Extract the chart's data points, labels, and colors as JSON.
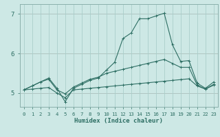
{
  "xlabel": "Humidex (Indice chaleur)",
  "background_color": "#cde8e5",
  "line_color": "#2d6e63",
  "grid_color_major": "#aaceca",
  "grid_color_minor": "#c2deda",
  "xlim": [
    -0.5,
    23.5
  ],
  "ylim": [
    4.65,
    7.25
  ],
  "yticks": [
    5,
    6,
    7
  ],
  "xticks": [
    0,
    1,
    2,
    3,
    4,
    5,
    6,
    7,
    8,
    9,
    10,
    11,
    12,
    13,
    14,
    15,
    16,
    17,
    18,
    19,
    20,
    21,
    22,
    23
  ],
  "line_bottom_y": [
    5.08,
    5.1,
    5.12,
    5.14,
    5.0,
    4.88,
    5.08,
    5.1,
    5.12,
    5.14,
    5.16,
    5.18,
    5.2,
    5.22,
    5.24,
    5.26,
    5.28,
    5.3,
    5.32,
    5.34,
    5.36,
    5.18,
    5.1,
    5.2
  ],
  "line_mid_y": [
    5.08,
    5.18,
    5.28,
    5.35,
    5.08,
    4.98,
    5.15,
    5.25,
    5.35,
    5.4,
    5.5,
    5.55,
    5.6,
    5.65,
    5.7,
    5.75,
    5.8,
    5.85,
    5.75,
    5.65,
    5.65,
    5.2,
    5.1,
    5.22
  ],
  "line_top_y": [
    5.08,
    5.18,
    5.28,
    5.38,
    5.12,
    4.78,
    5.12,
    5.22,
    5.32,
    5.38,
    5.58,
    5.78,
    6.38,
    6.52,
    6.88,
    6.88,
    6.95,
    7.02,
    6.22,
    5.8,
    5.82,
    5.25,
    5.12,
    5.28
  ]
}
